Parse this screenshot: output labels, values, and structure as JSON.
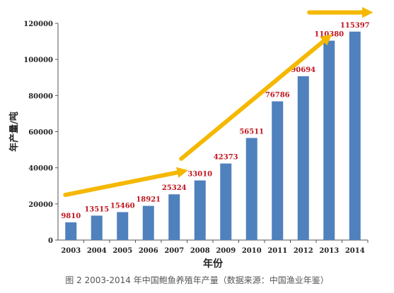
{
  "chart_data": {
    "type": "bar",
    "categories": [
      "2003",
      "2004",
      "2005",
      "2006",
      "2007",
      "2008",
      "2009",
      "2010",
      "2011",
      "2012",
      "2013",
      "2014"
    ],
    "values": [
      9810,
      13515,
      15460,
      18921,
      25324,
      33010,
      42373,
      56511,
      76786,
      90694,
      110380,
      115397
    ],
    "data_labels": [
      "9810",
      "13515",
      "15460",
      "18921",
      "25324",
      "33010",
      "42373",
      "56511",
      "76786",
      "90694",
      "110380",
      "115397"
    ],
    "xlabel": "年份",
    "ylabel": "年产量/吨",
    "ylim": [
      0,
      120000
    ],
    "yticks": [
      0,
      20000,
      40000,
      60000,
      80000,
      100000,
      120000
    ],
    "ytick_labels": [
      "0",
      "20000",
      "40000",
      "60000",
      "80000",
      "100000",
      "120000"
    ],
    "grid": false,
    "legend": "none",
    "bar_color": "#4f81bd",
    "label_color": "#c0141c",
    "arrow_color": "#f5b800",
    "trend_arrows": [
      {
        "from": {
          "x": "2003",
          "y": 25000
        },
        "to": {
          "x": "2007",
          "y": 38000
        }
      },
      {
        "from": {
          "x": "2007",
          "y": 45000
        },
        "to": {
          "x": "2013",
          "y": 112000
        }
      },
      {
        "from": {
          "x": "2013",
          "y": 126000
        },
        "to": {
          "x": "2014",
          "y": 126000
        }
      }
    ]
  },
  "caption": "图 2 2003-2014 年中国鲍鱼养殖年产量（数据来源：中国渔业年鉴）"
}
